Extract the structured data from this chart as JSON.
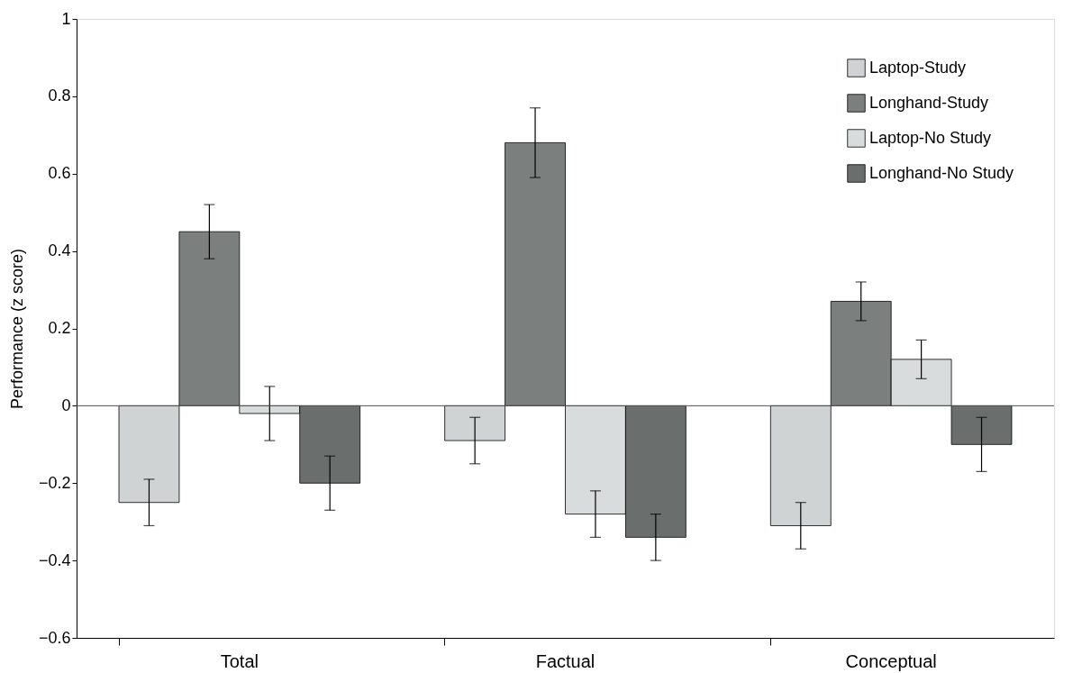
{
  "chart_data": {
    "type": "bar",
    "ylabel": "Performance (z score)",
    "categories": [
      "Total",
      "Factual",
      "Conceptual"
    ],
    "series": [
      {
        "name": "Laptop-Study",
        "color": "#cfd3d3",
        "values": [
          -0.25,
          -0.09,
          -0.31
        ],
        "errors": [
          0.06,
          0.06,
          0.06
        ]
      },
      {
        "name": "Longhand-Study",
        "color": "#7b807f",
        "values": [
          0.45,
          0.68,
          0.27
        ],
        "errors": [
          0.07,
          0.09,
          0.05
        ]
      },
      {
        "name": "Laptop-No Study",
        "color": "#d9dcdc",
        "values": [
          -0.02,
          -0.28,
          0.12
        ],
        "errors": [
          0.07,
          0.06,
          0.05
        ]
      },
      {
        "name": "Longhand-No Study",
        "color": "#6a6f6e",
        "values": [
          -0.2,
          -0.34,
          -0.1
        ],
        "errors": [
          0.07,
          0.06,
          0.07
        ]
      }
    ],
    "ylim": [
      -0.6,
      1
    ],
    "yticks": [
      {
        "value": -0.6,
        "label": "−0.6"
      },
      {
        "value": -0.4,
        "label": "−0.4"
      },
      {
        "value": -0.2,
        "label": "−0.2"
      },
      0,
      0.2,
      0.4,
      0.6,
      0.8,
      1
    ],
    "ref_lines": [
      {
        "axis": "y",
        "value": 0,
        "color": "#555555"
      }
    ],
    "legend": "top right",
    "grid": false
  }
}
